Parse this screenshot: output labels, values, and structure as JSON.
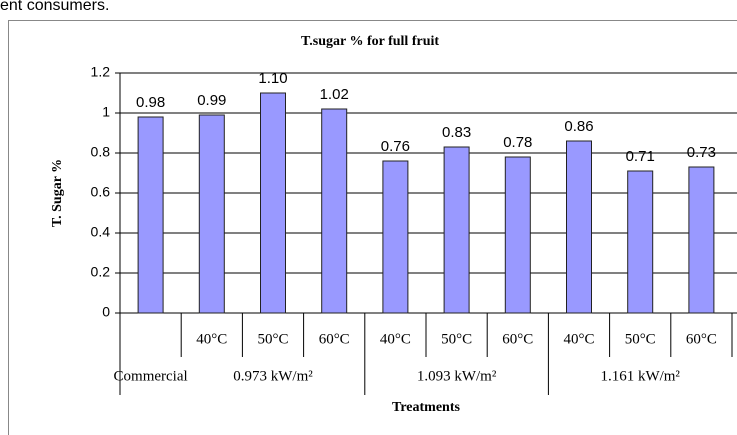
{
  "page_text": "ent consumers.",
  "chart_data": {
    "type": "bar",
    "title": "T.sugar % for full fruit",
    "y_label": "T. Sugar %",
    "x_label": "Treatments",
    "categories": [
      null,
      "40°C",
      "50°C",
      "60°C",
      "40°C",
      "50°C",
      "60°C",
      "40°C",
      "50°C",
      "60°C"
    ],
    "groups": [
      {
        "label": "Commercial",
        "size": 1
      },
      {
        "label": "0.973 kW/m²",
        "size": 3
      },
      {
        "label": "1.093 kW/m²",
        "size": 3
      },
      {
        "label": "1.161 kW/m²",
        "size": 3
      }
    ],
    "values": [
      0.98,
      0.99,
      1.1,
      1.02,
      0.76,
      0.83,
      0.78,
      0.86,
      0.71,
      0.73
    ],
    "value_labels": [
      "0.98",
      "0.99",
      "1.10",
      "1.02",
      "0.76",
      "0.83",
      "0.78",
      "0.86",
      "0.71",
      "0.73"
    ],
    "color": "#9999ff",
    "ylim": [
      0,
      1.2
    ],
    "yticks": [
      0,
      0.2,
      0.4,
      0.6,
      0.8,
      1,
      1.2
    ],
    "grid": true
  }
}
